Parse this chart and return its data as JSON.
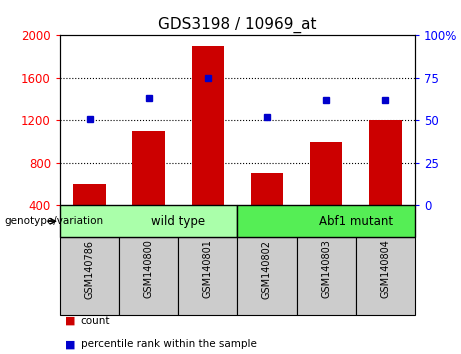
{
  "title": "GDS3198 / 10969_at",
  "categories": [
    "GSM140786",
    "GSM140800",
    "GSM140801",
    "GSM140802",
    "GSM140803",
    "GSM140804"
  ],
  "counts": [
    600,
    1100,
    1900,
    700,
    1000,
    1200
  ],
  "percentiles": [
    51,
    63,
    75,
    52,
    62,
    62
  ],
  "bar_color": "#cc0000",
  "dot_color": "#0000cc",
  "left_ylim": [
    400,
    2000
  ],
  "right_ylim": [
    0,
    100
  ],
  "left_yticks": [
    400,
    800,
    1200,
    1600,
    2000
  ],
  "right_yticks": [
    0,
    25,
    50,
    75,
    100
  ],
  "right_yticklabels": [
    "0",
    "25",
    "50",
    "75",
    "100%"
  ],
  "hlines": [
    800,
    1200,
    1600
  ],
  "groups": [
    {
      "label": "wild type",
      "start": 0,
      "end": 3,
      "color": "#aaffaa"
    },
    {
      "label": "Abf1 mutant",
      "start": 3,
      "end": 6,
      "color": "#55ee55"
    }
  ],
  "genotype_label": "genotype/variation",
  "legend_count_label": "count",
  "legend_percentile_label": "percentile rank within the sample",
  "xlabel_area_color": "#cccccc",
  "title_fontsize": 11,
  "tick_fontsize": 8.5,
  "label_fontsize": 7
}
